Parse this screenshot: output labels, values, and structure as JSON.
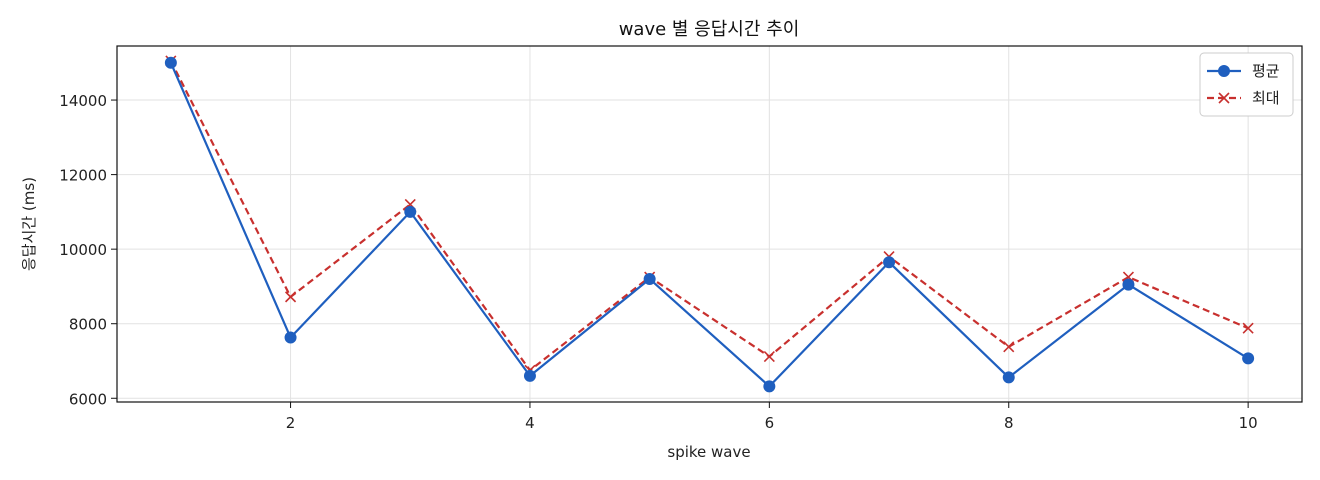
{
  "chart_data": {
    "type": "line",
    "title": "wave 별 응답시간 추이",
    "xlabel": "spike wave",
    "ylabel": "응답시간 (ms)",
    "x": [
      1,
      2,
      3,
      4,
      5,
      6,
      7,
      8,
      9,
      10
    ],
    "x_ticks": [
      2,
      4,
      6,
      8,
      10
    ],
    "y_ticks": [
      6000,
      8000,
      10000,
      12000,
      14000
    ],
    "xlim": [
      0.55,
      10.45
    ],
    "ylim": [
      5900,
      15450
    ],
    "grid": true,
    "legend_position": "top-right",
    "series": [
      {
        "name": "평균",
        "values": [
          15000,
          7630,
          11000,
          6600,
          9200,
          6320,
          9650,
          6560,
          9050,
          7070
        ],
        "color": "#1f5fbf",
        "line_style": "solid",
        "marker": "circle"
      },
      {
        "name": "최대",
        "values": [
          15050,
          8720,
          11200,
          6750,
          9250,
          7120,
          9800,
          7380,
          9250,
          7880
        ],
        "color": "#c8302e",
        "line_style": "dashed",
        "marker": "x"
      }
    ]
  }
}
